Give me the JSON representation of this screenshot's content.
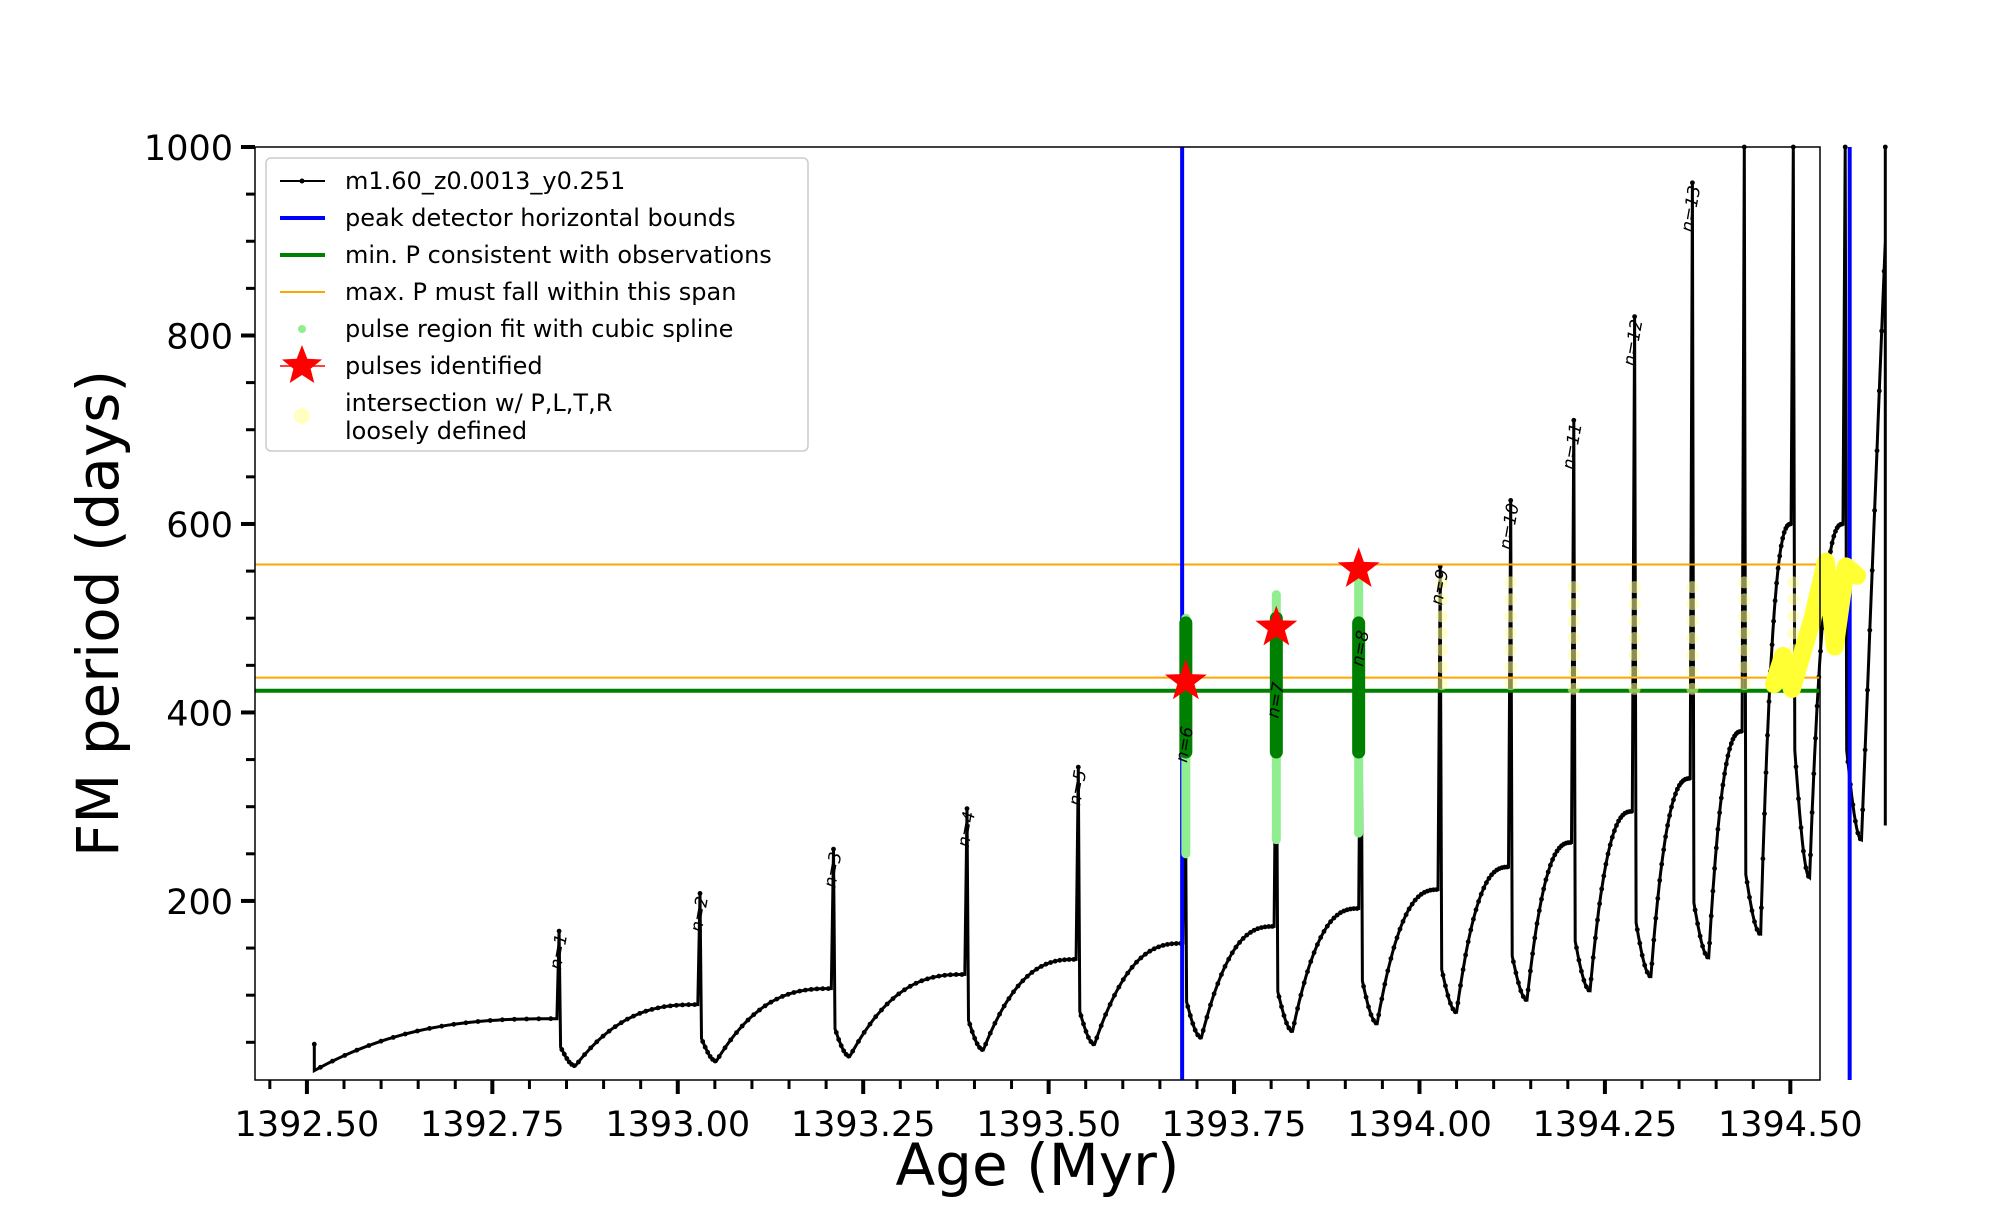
{
  "chart_data": {
    "type": "line",
    "title": "",
    "xlabel": "Age (Myr)",
    "ylabel": "FM period (days)",
    "xlim": [
      1392.43,
      1394.54
    ],
    "ylim": [
      10,
      1000
    ],
    "x_ticks": [
      1392.5,
      1392.75,
      1393.0,
      1393.25,
      1393.5,
      1393.75,
      1394.0,
      1394.25,
      1394.5
    ],
    "x_tick_labels": [
      "1392.50",
      "1392.75",
      "1393.00",
      "1393.25",
      "1393.50",
      "1393.75",
      "1394.00",
      "1394.25",
      "1394.50"
    ],
    "y_ticks": [
      200,
      400,
      600,
      800,
      1000
    ],
    "y_tick_labels": [
      "200",
      "400",
      "600",
      "800",
      "1000"
    ],
    "grid": false,
    "legend_position": "top-left",
    "legend": [
      {
        "label": "m1.60_z0.0013_y0.251",
        "kind": "line-dot",
        "color": "#000000"
      },
      {
        "label": "peak detector horizontal bounds",
        "kind": "line",
        "color": "#0000ff"
      },
      {
        "label": "min. P consistent with observations",
        "kind": "line",
        "color": "#008000"
      },
      {
        "label": "max. P must fall within this span",
        "kind": "thin-line",
        "color": "#ffa500"
      },
      {
        "label": "pulse region fit with cubic spline",
        "kind": "dot",
        "color": "#90ee90"
      },
      {
        "label": "pulses identified",
        "kind": "star",
        "color": "#ff0000"
      },
      {
        "label": "intersection w/ P,L,T,R",
        "label2": "loosely defined",
        "kind": "circle",
        "color": "#ffff99"
      }
    ],
    "model_pulses": [
      {
        "x": 1392.84,
        "base": 75,
        "peak": 168,
        "min": 25,
        "label": "n=1"
      },
      {
        "x": 1393.03,
        "base": 90,
        "peak": 208,
        "min": 30,
        "label": "n=2"
      },
      {
        "x": 1393.21,
        "base": 107,
        "peak": 255,
        "min": 35,
        "label": "n=3"
      },
      {
        "x": 1393.39,
        "base": 122,
        "peak": 298,
        "min": 42,
        "label": "n=4"
      },
      {
        "x": 1393.54,
        "base": 138,
        "peak": 342,
        "min": 48,
        "label": "n=5"
      },
      {
        "x": 1393.684,
        "base": 155,
        "peak": 388,
        "min": 55,
        "label": "n=6"
      },
      {
        "x": 1393.807,
        "base": 173,
        "peak": 435,
        "min": 62,
        "label": "n=7"
      },
      {
        "x": 1393.921,
        "base": 192,
        "peak": 490,
        "min": 70,
        "label": "n=8"
      },
      {
        "x": 1394.028,
        "base": 212,
        "peak": 555,
        "min": 82,
        "label": "n=9"
      },
      {
        "x": 1394.123,
        "base": 236,
        "peak": 625,
        "min": 95,
        "label": "n=10"
      },
      {
        "x": 1394.208,
        "base": 262,
        "peak": 710,
        "min": 105,
        "label": "n=11"
      },
      {
        "x": 1394.29,
        "base": 295,
        "peak": 820,
        "min": 120,
        "label": "n=12"
      },
      {
        "x": 1394.368,
        "base": 330,
        "peak": 962,
        "min": 140,
        "label": "n=13"
      },
      {
        "x": 1394.438,
        "base": 380,
        "peak": 1000,
        "min": 165,
        "label": ""
      },
      {
        "x": 1394.504,
        "base": 600,
        "peak": 1000,
        "min": 225,
        "label": ""
      },
      {
        "x": 1394.574,
        "base": 600,
        "peak": 1000,
        "min": 265,
        "label": ""
      }
    ],
    "model_start": {
      "x": 1392.51,
      "y": 20
    },
    "model_end": {
      "x": 1394.628,
      "y": 900,
      "drop": 280
    },
    "blue_vlines": [
      1393.68,
      1394.58
    ],
    "green_hline": 423,
    "orange_hlines": [
      437,
      557
    ],
    "spline_fits": [
      {
        "x": 1393.685,
        "y_light": [
          250,
          500
        ],
        "y_dark": [
          358,
          495
        ]
      },
      {
        "x": 1393.807,
        "y_light": [
          265,
          525
        ],
        "y_dark": [
          358,
          500
        ]
      },
      {
        "x": 1393.918,
        "y_light": [
          272,
          550
        ],
        "y_dark": [
          358,
          495
        ]
      }
    ],
    "pulses_identified": [
      {
        "x": 1393.685,
        "y": 433
      },
      {
        "x": 1393.807,
        "y": 490
      },
      {
        "x": 1393.918,
        "y": 552
      }
    ],
    "intersection_clusters": [
      {
        "x": 1394.03,
        "y_range": [
          430,
          550
        ]
      },
      {
        "x": 1394.123,
        "y_range": [
          430,
          550
        ]
      },
      {
        "x": 1394.208,
        "y_range": [
          425,
          545
        ]
      },
      {
        "x": 1394.29,
        "y_range": [
          425,
          545
        ]
      },
      {
        "x": 1394.368,
        "y_range": [
          425,
          545
        ]
      },
      {
        "x": 1394.438,
        "y_range": [
          430,
          550
        ]
      },
      {
        "x": 1394.504,
        "y_range": [
          430,
          555
        ]
      }
    ],
    "intersection_dense": [
      [
        1394.478,
        430
      ],
      [
        1394.49,
        460
      ],
      [
        1394.502,
        425
      ],
      [
        1394.53,
        500
      ],
      [
        1394.548,
        560
      ],
      [
        1394.56,
        470
      ],
      [
        1394.575,
        555
      ],
      [
        1394.59,
        545
      ]
    ]
  }
}
